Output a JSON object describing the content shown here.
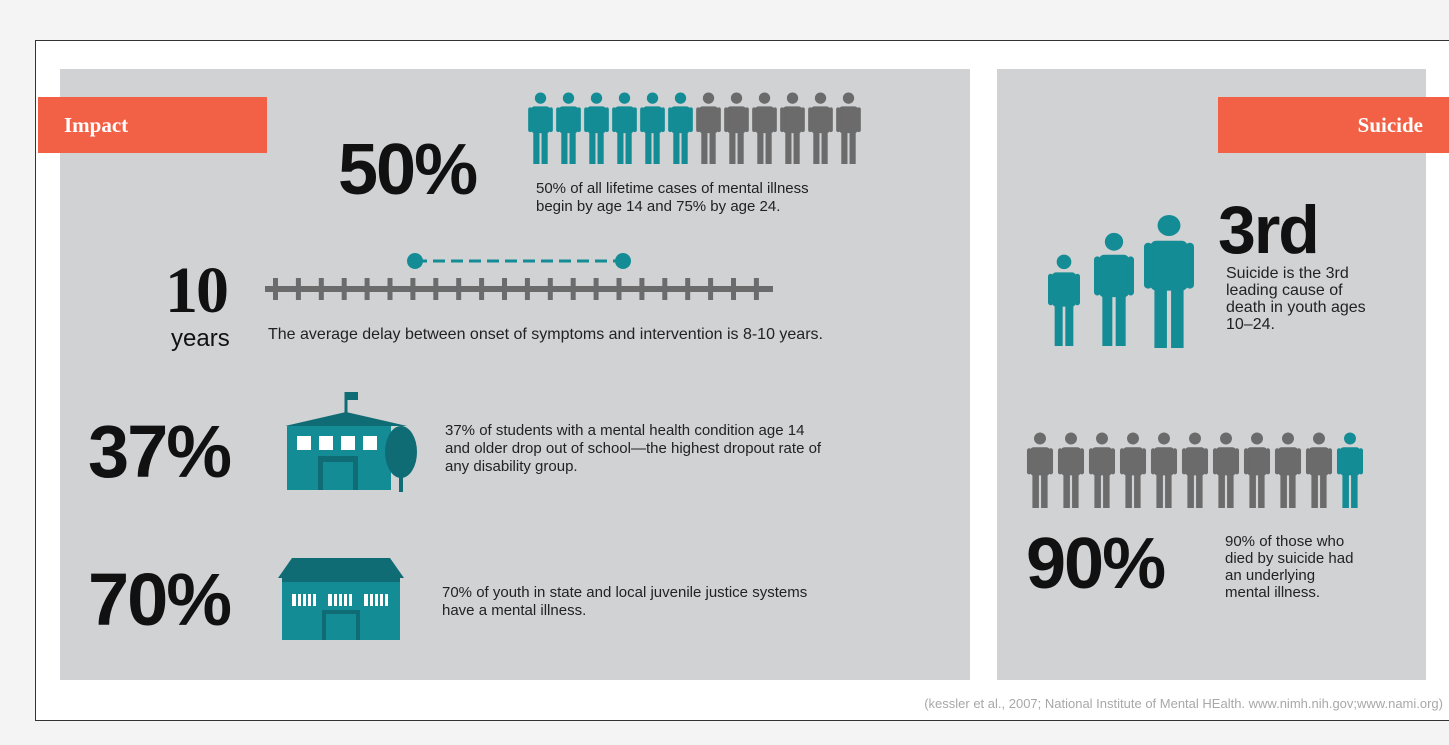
{
  "impact": {
    "tag": "Impact",
    "stat1": {
      "value": "50%",
      "text_line1": "50% of all lifetime cases of mental illness",
      "text_line2": "begin by age 14 and 75% by age 24.",
      "filled_of_12": 6
    },
    "stat2": {
      "value": "10",
      "unit": "years",
      "text": "The average delay between onset of symptoms and intervention is 8-10 years."
    },
    "stat3": {
      "value": "37%",
      "text_line1": "37% of students with a mental health condition age 14",
      "text_line2": "and older drop out of school—the highest dropout rate of",
      "text_line3": "any disability group."
    },
    "stat4": {
      "value": "70%",
      "text_line1": "70% of youth in state and local juvenile justice systems",
      "text_line2": "have a mental illness."
    }
  },
  "suicide": {
    "tag": "Suicide",
    "stat1": {
      "value": "3rd",
      "text_line1": "Suicide is the 3rd",
      "text_line2": "leading cause of",
      "text_line3": "death in youth ages",
      "text_line4": "10–24."
    },
    "stat2": {
      "value": "90%",
      "text_line1": "90% of those who",
      "text_line2": "died by suicide had",
      "text_line3": "an underlying",
      "text_line4": "mental illness.",
      "highlighted_of_11": 1
    }
  },
  "source": "(kessler et al., 2007; National Institute of Mental HEalth. www.nimh.nih.gov;www.nami.org)",
  "colors": {
    "accent": "#f26045",
    "teal": "#138c95",
    "gray": "#6b6b6b",
    "dark_teal": "#0f6c74",
    "panel": "#d1d2d4"
  }
}
